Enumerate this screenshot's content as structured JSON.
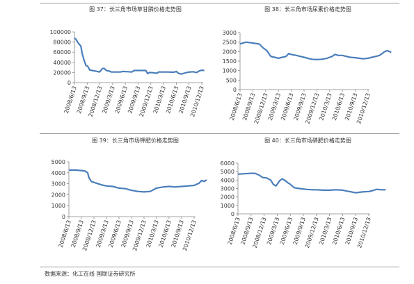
{
  "captions": [
    "图 37：长三角市场草甘膦价格走势图",
    "图 38：长三角市场尿素价格走势图",
    "图 39：长三角市场钾肥价格走势图",
    "图 40：长三角市场磷肥价格走势图"
  ],
  "source": "数据来源：化工在线  国联证券研究所",
  "chart_data": [
    {
      "type": "line",
      "title": "图 37：长三角市场草甘膦价格走势图",
      "x_tick_labels": [
        "2008/6/13",
        "2008/9/13",
        "2008/12/13",
        "2009/3/13",
        "2009/6/13",
        "2009/9/13",
        "2009/12/13",
        "2010/3/13",
        "2010/6/13",
        "2010/9/13",
        "2010/12/13"
      ],
      "y_ticks": [
        0,
        20000,
        40000,
        60000,
        80000,
        100000
      ],
      "y_tick_labels": [
        "0",
        "20000",
        "40000",
        "60000",
        "80000",
        "100000"
      ],
      "ylim": [
        0,
        100000
      ],
      "series": [
        {
          "color": "#4a7ebb",
          "points": [
            [
              0,
              88000
            ],
            [
              0.1,
              86000
            ],
            [
              0.25,
              80000
            ],
            [
              0.4,
              75000
            ],
            [
              0.5,
              72000
            ],
            [
              0.6,
              58000
            ],
            [
              0.75,
              45000
            ],
            [
              0.9,
              34000
            ],
            [
              1.05,
              32000
            ],
            [
              1.2,
              25000
            ],
            [
              1.4,
              24000
            ],
            [
              1.6,
              23000
            ],
            [
              1.8,
              22000
            ],
            [
              1.95,
              21000
            ],
            [
              2.05,
              23000
            ],
            [
              2.2,
              28000
            ],
            [
              2.35,
              28000
            ],
            [
              2.5,
              24000
            ],
            [
              2.7,
              23000
            ],
            [
              2.9,
              21000
            ],
            [
              3.2,
              21000
            ],
            [
              3.6,
              21000
            ],
            [
              3.8,
              22000
            ],
            [
              4.2,
              21500
            ],
            [
              4.5,
              21000
            ],
            [
              4.7,
              24000
            ],
            [
              5.1,
              24000
            ],
            [
              5.6,
              24000
            ],
            [
              5.75,
              18000
            ],
            [
              5.9,
              20000
            ],
            [
              6.2,
              19500
            ],
            [
              6.5,
              18500
            ],
            [
              6.6,
              21000
            ],
            [
              7.3,
              21000
            ],
            [
              7.8,
              20500
            ],
            [
              8.0,
              22000
            ],
            [
              8.2,
              18000
            ],
            [
              8.4,
              17000
            ],
            [
              8.9,
              20500
            ],
            [
              9.3,
              21500
            ],
            [
              9.6,
              20000
            ],
            [
              9.8,
              23000
            ],
            [
              10.0,
              24500
            ],
            [
              10.2,
              24000
            ]
          ]
        }
      ]
    },
    {
      "type": "line",
      "title": "图 38：长三角市场尿素价格走势图",
      "x_tick_labels": [
        "2008/6/13",
        "2008/9/13",
        "2008/12/13",
        "2009/3/13",
        "2009/6/13",
        "2009/9/13",
        "2009/12/13",
        "2010/3/13",
        "2010/6/13",
        "2010/9/13",
        "2010/12/13"
      ],
      "y_ticks": [
        0,
        500,
        1000,
        1500,
        2000,
        2500,
        3000
      ],
      "y_tick_labels": [
        "0",
        "500",
        "1000",
        "1500",
        "2000",
        "2500",
        "3000"
      ],
      "ylim": [
        0,
        3000
      ],
      "series": [
        {
          "color": "#4a7ebb",
          "points": [
            [
              0,
              2400
            ],
            [
              0.2,
              2450
            ],
            [
              0.5,
              2500
            ],
            [
              1.0,
              2450
            ],
            [
              1.5,
              2400
            ],
            [
              1.8,
              2200
            ],
            [
              2.1,
              2050
            ],
            [
              2.4,
              1750
            ],
            [
              2.7,
              1700
            ],
            [
              3.0,
              1650
            ],
            [
              3.3,
              1700
            ],
            [
              3.6,
              1750
            ],
            [
              3.8,
              1900
            ],
            [
              4.0,
              1850
            ],
            [
              4.4,
              1800
            ],
            [
              4.7,
              1750
            ],
            [
              5.0,
              1700
            ],
            [
              5.3,
              1650
            ],
            [
              5.6,
              1600
            ],
            [
              6.0,
              1580
            ],
            [
              6.4,
              1600
            ],
            [
              6.8,
              1650
            ],
            [
              7.0,
              1700
            ],
            [
              7.2,
              1750
            ],
            [
              7.4,
              1850
            ],
            [
              7.7,
              1800
            ],
            [
              8.0,
              1800
            ],
            [
              8.3,
              1750
            ],
            [
              8.6,
              1700
            ],
            [
              9.0,
              1680
            ],
            [
              9.3,
              1650
            ],
            [
              9.6,
              1620
            ],
            [
              10.0,
              1650
            ],
            [
              10.3,
              1700
            ],
            [
              10.6,
              1750
            ],
            [
              10.9,
              1800
            ],
            [
              11.1,
              1900
            ],
            [
              11.3,
              2000
            ],
            [
              11.5,
              2050
            ],
            [
              11.7,
              2000
            ],
            [
              11.8,
              1950
            ]
          ]
        }
      ]
    },
    {
      "type": "line",
      "title": "图 39：长三角市场钾肥价格走势图",
      "x_tick_labels": [
        "2008/6/13",
        "2008/9/13",
        "2008/12/13",
        "2009/3/13",
        "2009/6/13",
        "2009/9/13",
        "2009/12/13",
        "2010/3/13",
        "2010/6/13",
        "2010/9/13",
        "2010/12/13"
      ],
      "y_ticks": [
        0,
        1000,
        2000,
        3000,
        4000,
        5000
      ],
      "y_tick_labels": [
        "0",
        "1000",
        "2000",
        "3000",
        "4000",
        "5000"
      ],
      "ylim": [
        0,
        5000
      ],
      "series": [
        {
          "color": "#4a7ebb",
          "points": [
            [
              0,
              4250
            ],
            [
              0.5,
              4250
            ],
            [
              1.0,
              4200
            ],
            [
              1.3,
              4150
            ],
            [
              1.5,
              4000
            ],
            [
              1.6,
              3550
            ],
            [
              1.8,
              3200
            ],
            [
              2.2,
              3050
            ],
            [
              2.6,
              2900
            ],
            [
              3.0,
              2800
            ],
            [
              3.5,
              2750
            ],
            [
              4.0,
              2600
            ],
            [
              4.5,
              2550
            ],
            [
              5.0,
              2400
            ],
            [
              5.5,
              2300
            ],
            [
              6.0,
              2250
            ],
            [
              6.5,
              2300
            ],
            [
              7.0,
              2600
            ],
            [
              7.5,
              2700
            ],
            [
              8.0,
              2750
            ],
            [
              8.5,
              2700
            ],
            [
              9.0,
              2750
            ],
            [
              9.5,
              2800
            ],
            [
              10.0,
              2850
            ],
            [
              10.4,
              3050
            ],
            [
              10.6,
              3300
            ],
            [
              10.8,
              3200
            ],
            [
              11.0,
              3350
            ]
          ]
        }
      ]
    },
    {
      "type": "line",
      "title": "图 40：长三角市场磷肥价格走势图",
      "x_tick_labels": [
        "2008/6/13",
        "2008/9/13",
        "2008/12/13",
        "2009/3/13",
        "2009/6/13",
        "2009/9/13",
        "2009/12/13",
        "2010/3/13",
        "2010/6/13",
        "2010/9/13",
        "2010/12/13"
      ],
      "y_ticks": [
        0,
        1000,
        2000,
        3000,
        4000,
        5000,
        6000
      ],
      "y_tick_labels": [
        "0",
        "1000",
        "2000",
        "3000",
        "4000",
        "5000",
        "6000"
      ],
      "ylim": [
        0,
        6000
      ],
      "series": [
        {
          "color": "#4a7ebb",
          "points": [
            [
              0,
              4700
            ],
            [
              0.5,
              4750
            ],
            [
              1.0,
              4800
            ],
            [
              1.3,
              4800
            ],
            [
              1.6,
              4600
            ],
            [
              1.9,
              4300
            ],
            [
              2.2,
              4250
            ],
            [
              2.5,
              4000
            ],
            [
              2.7,
              3500
            ],
            [
              2.9,
              3300
            ],
            [
              3.0,
              3500
            ],
            [
              3.2,
              3950
            ],
            [
              3.4,
              4150
            ],
            [
              3.6,
              3950
            ],
            [
              3.8,
              3700
            ],
            [
              4.0,
              3500
            ],
            [
              4.3,
              3100
            ],
            [
              4.7,
              3000
            ],
            [
              5.2,
              2900
            ],
            [
              5.7,
              2850
            ],
            [
              6.0,
              2850
            ],
            [
              6.5,
              2800
            ],
            [
              7.0,
              2800
            ],
            [
              7.5,
              2850
            ],
            [
              8.0,
              2800
            ],
            [
              8.5,
              2650
            ],
            [
              9.0,
              2500
            ],
            [
              9.5,
              2600
            ],
            [
              10.0,
              2650
            ],
            [
              10.3,
              2750
            ],
            [
              10.6,
              2900
            ],
            [
              11.0,
              2850
            ],
            [
              11.3,
              2850
            ]
          ]
        }
      ]
    }
  ]
}
